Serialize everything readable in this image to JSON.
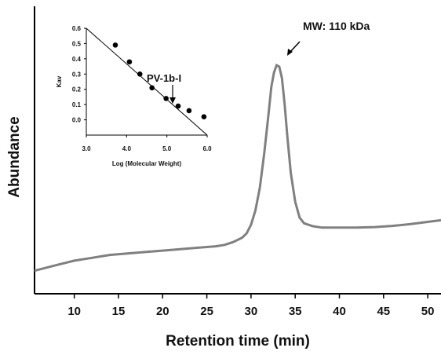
{
  "chart_data": [
    {
      "type": "line",
      "title": "",
      "xlabel": "Retention time (min)",
      "ylabel": "Abundance",
      "xlim": [
        5.5,
        51.5
      ],
      "ylim": [
        0,
        1
      ],
      "x_ticks": [
        10,
        15,
        20,
        25,
        30,
        35,
        40,
        45,
        50
      ],
      "x_tick_labels": [
        "10",
        "15",
        "20",
        "25",
        "30",
        "35",
        "40",
        "45",
        "50"
      ],
      "y_ticks_shown": false,
      "grid": false,
      "series": [
        {
          "x": [
            5.5,
            8,
            10,
            12,
            14,
            16,
            18,
            20,
            22,
            24,
            26,
            27,
            28,
            29,
            29.5,
            30,
            30.5,
            31,
            31.5,
            32,
            32.3,
            32.6,
            32.9,
            33.2,
            33.5,
            33.8,
            34.1,
            34.5,
            35,
            35.5,
            36,
            37,
            38,
            40,
            42,
            44,
            46,
            48,
            50,
            51.5
          ],
          "y": [
            0.08,
            0.1,
            0.115,
            0.125,
            0.135,
            0.14,
            0.145,
            0.15,
            0.155,
            0.16,
            0.165,
            0.17,
            0.18,
            0.195,
            0.21,
            0.24,
            0.29,
            0.37,
            0.49,
            0.63,
            0.72,
            0.77,
            0.795,
            0.79,
            0.75,
            0.66,
            0.55,
            0.42,
            0.32,
            0.265,
            0.245,
            0.235,
            0.23,
            0.23,
            0.23,
            0.232,
            0.236,
            0.242,
            0.25,
            0.256
          ]
        }
      ],
      "annotations": [
        {
          "text": "MW: 110 kDa",
          "x": 33.0,
          "y": 0.795
        }
      ]
    },
    {
      "type": "scatter",
      "title": "",
      "xlabel": "Log (Molecular Weight)",
      "ylabel": "Kav",
      "xlim": [
        3.0,
        6.0
      ],
      "ylim": [
        -0.1,
        0.6
      ],
      "x_ticks": [
        3.0,
        4.0,
        5.0,
        6.0
      ],
      "x_tick_labels": [
        "3.0",
        "4.0",
        "5.0",
        "6.0"
      ],
      "y_ticks": [
        0.0,
        0.1,
        0.2,
        0.3,
        0.4,
        0.5,
        0.6
      ],
      "y_tick_labels": [
        "0.0",
        "0.1",
        "0.2",
        "0.3",
        "0.4",
        "0.5",
        "0.6"
      ],
      "grid": false,
      "series": [
        {
          "x": [
            3.72,
            4.07,
            4.33,
            4.63,
            4.98,
            5.28,
            5.55,
            5.92
          ],
          "y": [
            0.49,
            0.38,
            0.3,
            0.21,
            0.14,
            0.09,
            0.06,
            0.02
          ]
        }
      ],
      "fit_line": {
        "x": [
          3.0,
          6.0
        ],
        "y": [
          0.6,
          -0.1
        ]
      },
      "annotations": [
        {
          "text": "PV-1b-I",
          "x": 5.15,
          "y": 0.16
        }
      ]
    }
  ]
}
